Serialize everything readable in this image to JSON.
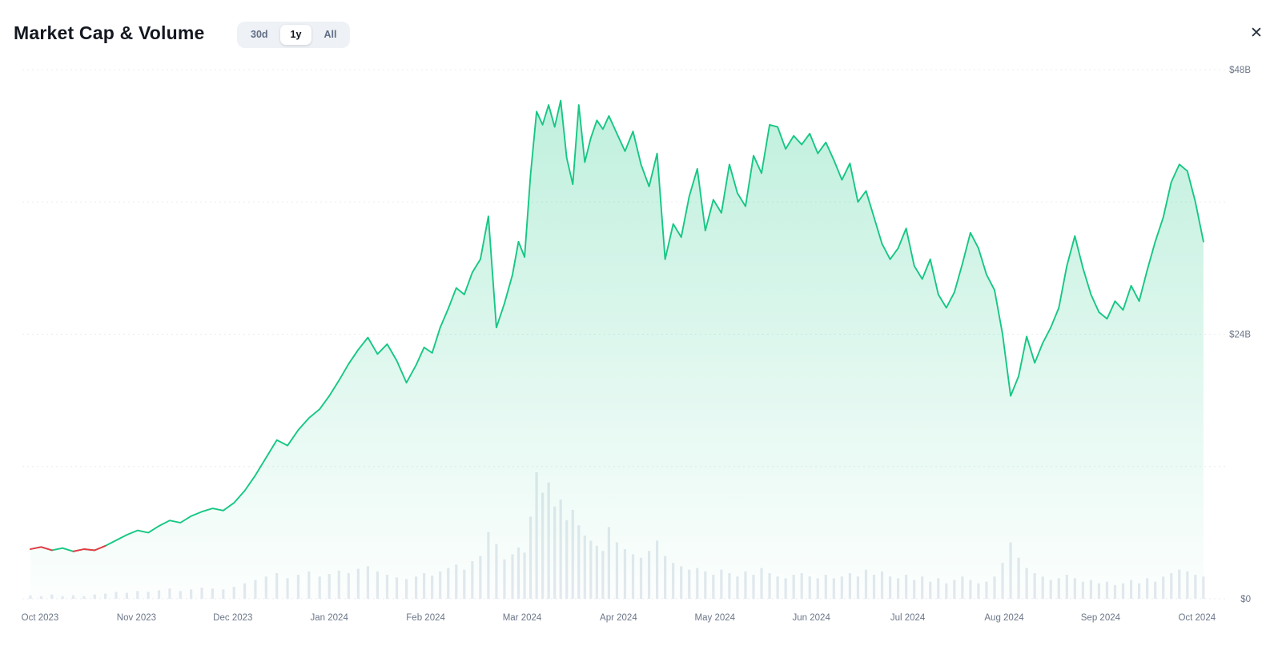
{
  "header": {
    "title": "Market Cap & Volume",
    "range_buttons": [
      {
        "label": "30d",
        "active": false
      },
      {
        "label": "1y",
        "active": true
      },
      {
        "label": "All",
        "active": false
      }
    ],
    "close_icon": "✕"
  },
  "chart_data": {
    "type": "area",
    "title": "Market Cap & Volume",
    "subtitle": "Market cap (green area, $B) with daily volume bars (gray), 1 year range",
    "legend_position": "none",
    "grid": "dotted-horizontal",
    "y_axis": {
      "position": "right",
      "max": 48,
      "min": 0,
      "grid_values": [
        0,
        12,
        24,
        36,
        48
      ],
      "ticks": [
        {
          "value": 48,
          "label": "$48B"
        },
        {
          "value": 24,
          "label": "$24B"
        },
        {
          "value": 0,
          "label": "$0"
        }
      ]
    },
    "x_axis": {
      "ticks": [
        "Oct 2023",
        "Nov 2023",
        "Dec 2023",
        "Jan 2024",
        "Feb 2024",
        "Mar 2024",
        "Apr 2024",
        "May 2024",
        "Jun 2024",
        "Jul 2024",
        "Aug 2024",
        "Sep 2024",
        "Oct 2024"
      ]
    },
    "colors": {
      "line": "#16c784",
      "down": "#ea3943",
      "area_top": "rgba(22,199,132,0.28)",
      "area_bottom": "rgba(22,199,132,0.01)",
      "volume_bar": "#e4e9ef",
      "grid": "#e8ecf1",
      "axis_text": "#6c7689"
    },
    "down_segments": [
      [
        0,
        2
      ],
      [
        4,
        7
      ]
    ],
    "months": [
      {
        "label": "Oct 2023",
        "values": [
          4.5,
          4.7,
          4.4,
          4.6,
          4.3,
          4.5,
          4.4,
          4.8,
          5.3
        ],
        "volumes": [
          0.4,
          0.3,
          0.5,
          0.3,
          0.4,
          0.3,
          0.5,
          0.6,
          0.8
        ]
      },
      {
        "label": "Nov 2023",
        "values": [
          5.8,
          6.2,
          6.0,
          6.6,
          7.1,
          6.9,
          7.5,
          7.9,
          8.2
        ],
        "volumes": [
          0.7,
          0.9,
          0.8,
          1.0,
          1.2,
          0.9,
          1.1,
          1.3,
          1.2
        ]
      },
      {
        "label": "Dec 2023",
        "values": [
          8.0,
          8.7,
          9.8,
          11.2,
          12.8,
          14.4,
          13.9,
          15.3,
          16.4
        ],
        "volumes": [
          1.1,
          1.4,
          1.8,
          2.2,
          2.6,
          3.0,
          2.4,
          2.8,
          3.2
        ]
      },
      {
        "label": "Jan 2024",
        "values": [
          17.2,
          18.4,
          19.8,
          21.3,
          22.6,
          23.7,
          22.2,
          23.1,
          21.6,
          19.6
        ],
        "volumes": [
          2.6,
          2.9,
          3.3,
          3.0,
          3.5,
          3.8,
          3.2,
          2.8,
          2.5,
          2.3
        ]
      },
      {
        "label": "Feb 2024",
        "values": [
          21.2,
          22.8,
          22.3,
          24.6,
          26.3,
          28.2,
          27.6,
          29.6,
          30.8,
          34.7,
          24.6,
          26.8
        ],
        "volumes": [
          2.6,
          3.0,
          2.7,
          3.2,
          3.6,
          4.0,
          3.4,
          4.4,
          5.0,
          7.8,
          6.4,
          4.6
        ]
      },
      {
        "label": "Mar 2024",
        "values": [
          29.4,
          32.4,
          31.0,
          38.5,
          44.2,
          43.0,
          44.8,
          42.8,
          45.2,
          40.0,
          37.6,
          44.8,
          39.6,
          41.8,
          43.4,
          42.6
        ],
        "volumes": [
          5.2,
          6.0,
          5.4,
          9.6,
          14.8,
          12.4,
          13.6,
          10.8,
          11.6,
          9.2,
          10.4,
          8.6,
          7.4,
          6.8,
          6.2,
          5.6
        ]
      },
      {
        "label": "Apr 2024",
        "values": [
          43.8,
          42.2,
          40.6,
          42.4,
          39.4,
          37.4,
          40.4,
          30.8,
          34.0,
          32.8,
          36.5,
          39.0
        ],
        "volumes": [
          8.4,
          6.6,
          5.8,
          5.2,
          4.8,
          5.6,
          6.8,
          5.0,
          4.2,
          3.8,
          3.4,
          3.6
        ]
      },
      {
        "label": "May 2024",
        "values": [
          33.4,
          36.2,
          35.0,
          39.4,
          36.8,
          35.6,
          40.2,
          38.6,
          43.0,
          42.8,
          40.8,
          42.0
        ],
        "volumes": [
          3.2,
          2.8,
          3.4,
          3.0,
          2.6,
          3.2,
          2.8,
          3.6,
          3.0,
          2.6,
          2.4,
          2.8
        ]
      },
      {
        "label": "Jun 2024",
        "values": [
          41.2,
          42.2,
          40.4,
          41.4,
          39.8,
          38.0,
          39.5,
          36.0,
          37.0,
          34.6,
          32.2,
          30.8
        ],
        "volumes": [
          3.0,
          2.6,
          2.4,
          2.8,
          2.4,
          2.6,
          3.0,
          2.6,
          3.4,
          2.8,
          3.2,
          2.6
        ]
      },
      {
        "label": "Jul 2024",
        "values": [
          31.8,
          33.6,
          30.2,
          29.0,
          30.8,
          27.6,
          26.4,
          27.8,
          30.4,
          33.2,
          31.8,
          29.4
        ],
        "volumes": [
          2.4,
          2.8,
          2.2,
          2.6,
          2.0,
          2.4,
          1.8,
          2.2,
          2.6,
          2.2,
          1.8,
          2.0
        ]
      },
      {
        "label": "Aug 2024",
        "values": [
          28.0,
          24.0,
          18.4,
          20.2,
          23.8,
          21.4,
          23.2,
          24.6,
          26.4,
          30.2,
          32.9,
          30.0
        ],
        "volumes": [
          2.6,
          4.2,
          6.6,
          4.8,
          3.6,
          3.0,
          2.6,
          2.2,
          2.4,
          2.8,
          2.4,
          2.0
        ]
      },
      {
        "label": "Sep 2024",
        "values": [
          27.6,
          26.0,
          25.4,
          27.0,
          26.2,
          28.4,
          27.0,
          29.8,
          32.4,
          34.6,
          37.8,
          39.4
        ],
        "volumes": [
          2.2,
          1.8,
          2.0,
          1.6,
          1.8,
          2.2,
          1.8,
          2.4,
          2.0,
          2.6,
          3.0,
          3.4
        ]
      },
      {
        "label": "Oct 2024",
        "step": 0.0833,
        "values": [
          38.8,
          36.0,
          32.4
        ],
        "volumes": [
          3.2,
          2.8,
          2.6
        ]
      }
    ]
  }
}
